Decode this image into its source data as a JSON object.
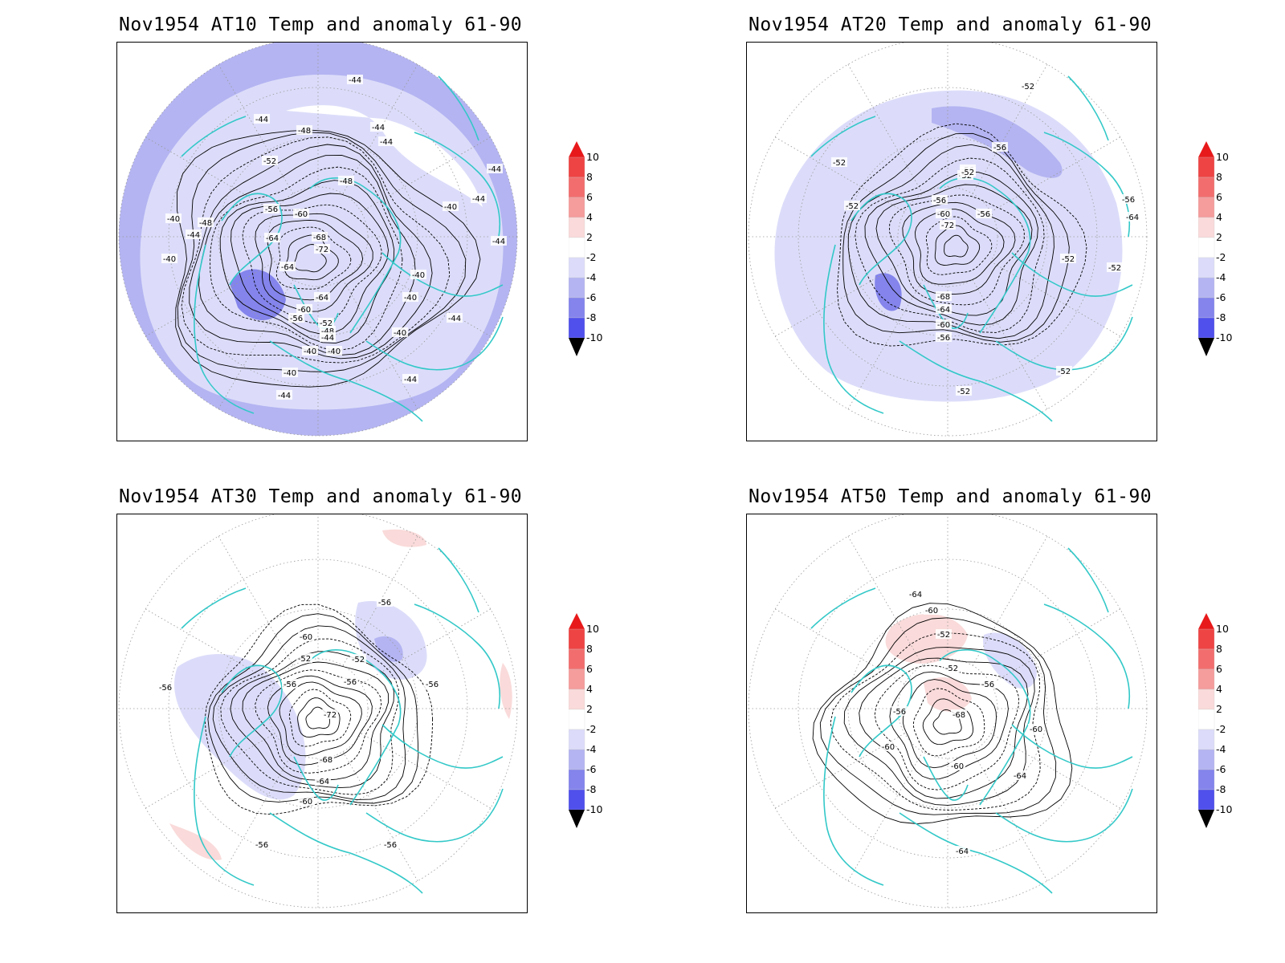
{
  "colorbar": {
    "labels": [
      "10",
      "8",
      "6",
      "4",
      "2",
      "-2",
      "-4",
      "-6",
      "-8",
      "-10"
    ],
    "colors": {
      "above_10": "#e8191a",
      "8_to_10": "#ee4444",
      "6_to_8": "#f26e6e",
      "4_to_6": "#f59c9c",
      "2_to_4": "#fadada",
      "-2_to_2": "#ffffff",
      "-4_to_-2": "#dcdcfa",
      "-6_to_-4": "#b4b4f2",
      "-8_to_-6": "#8484ec",
      "-10_to_-8": "#5050ec",
      "below_-10": "#1a1aec"
    }
  },
  "style": {
    "coastline_color": "#33c8c8",
    "contour_color": "#000000",
    "grid_color": "#9a9a9a"
  },
  "panels": [
    {
      "title": "Nov1954 AT10 Temp and anomaly 61-90",
      "contour_labels": [
        "-44",
        "-44",
        "-48",
        "-44",
        "-44",
        "-52",
        "-48",
        "-44",
        "-44",
        "-44",
        "-40",
        "-48",
        "-56",
        "-60",
        "-40",
        "-40",
        "-44",
        "-64",
        "-68",
        "-64",
        "-72",
        "-40",
        "-40",
        "-64",
        "-60",
        "-56",
        "-52",
        "-48",
        "-44",
        "-44",
        "-40",
        "-40",
        "-40",
        "-40",
        "-44",
        "-44"
      ]
    },
    {
      "title": "Nov1954 AT20 Temp and anomaly 61-90",
      "contour_labels": [
        "-52",
        "-56",
        "-52",
        "-56",
        "-52",
        "-52",
        "-56",
        "-60",
        "-56",
        "-52",
        "-56",
        "-64",
        "-72",
        "-52",
        "-52",
        "-68",
        "-64",
        "-60",
        "-56",
        "-52",
        "-52"
      ]
    },
    {
      "title": "Nov1954 AT30 Temp and anomaly 61-90",
      "contour_labels": [
        "-56",
        "-60",
        "-52",
        "-52",
        "-56",
        "-56",
        "-56",
        "-56",
        "-72",
        "-68",
        "-64",
        "-60",
        "-56",
        "-56"
      ]
    },
    {
      "title": "Nov1954 AT50 Temp and anomaly 61-90",
      "contour_labels": [
        "-64",
        "-60",
        "-52",
        "-52",
        "-56",
        "-56",
        "-68",
        "-60",
        "-60",
        "-64",
        "-60",
        "-64"
      ]
    }
  ]
}
